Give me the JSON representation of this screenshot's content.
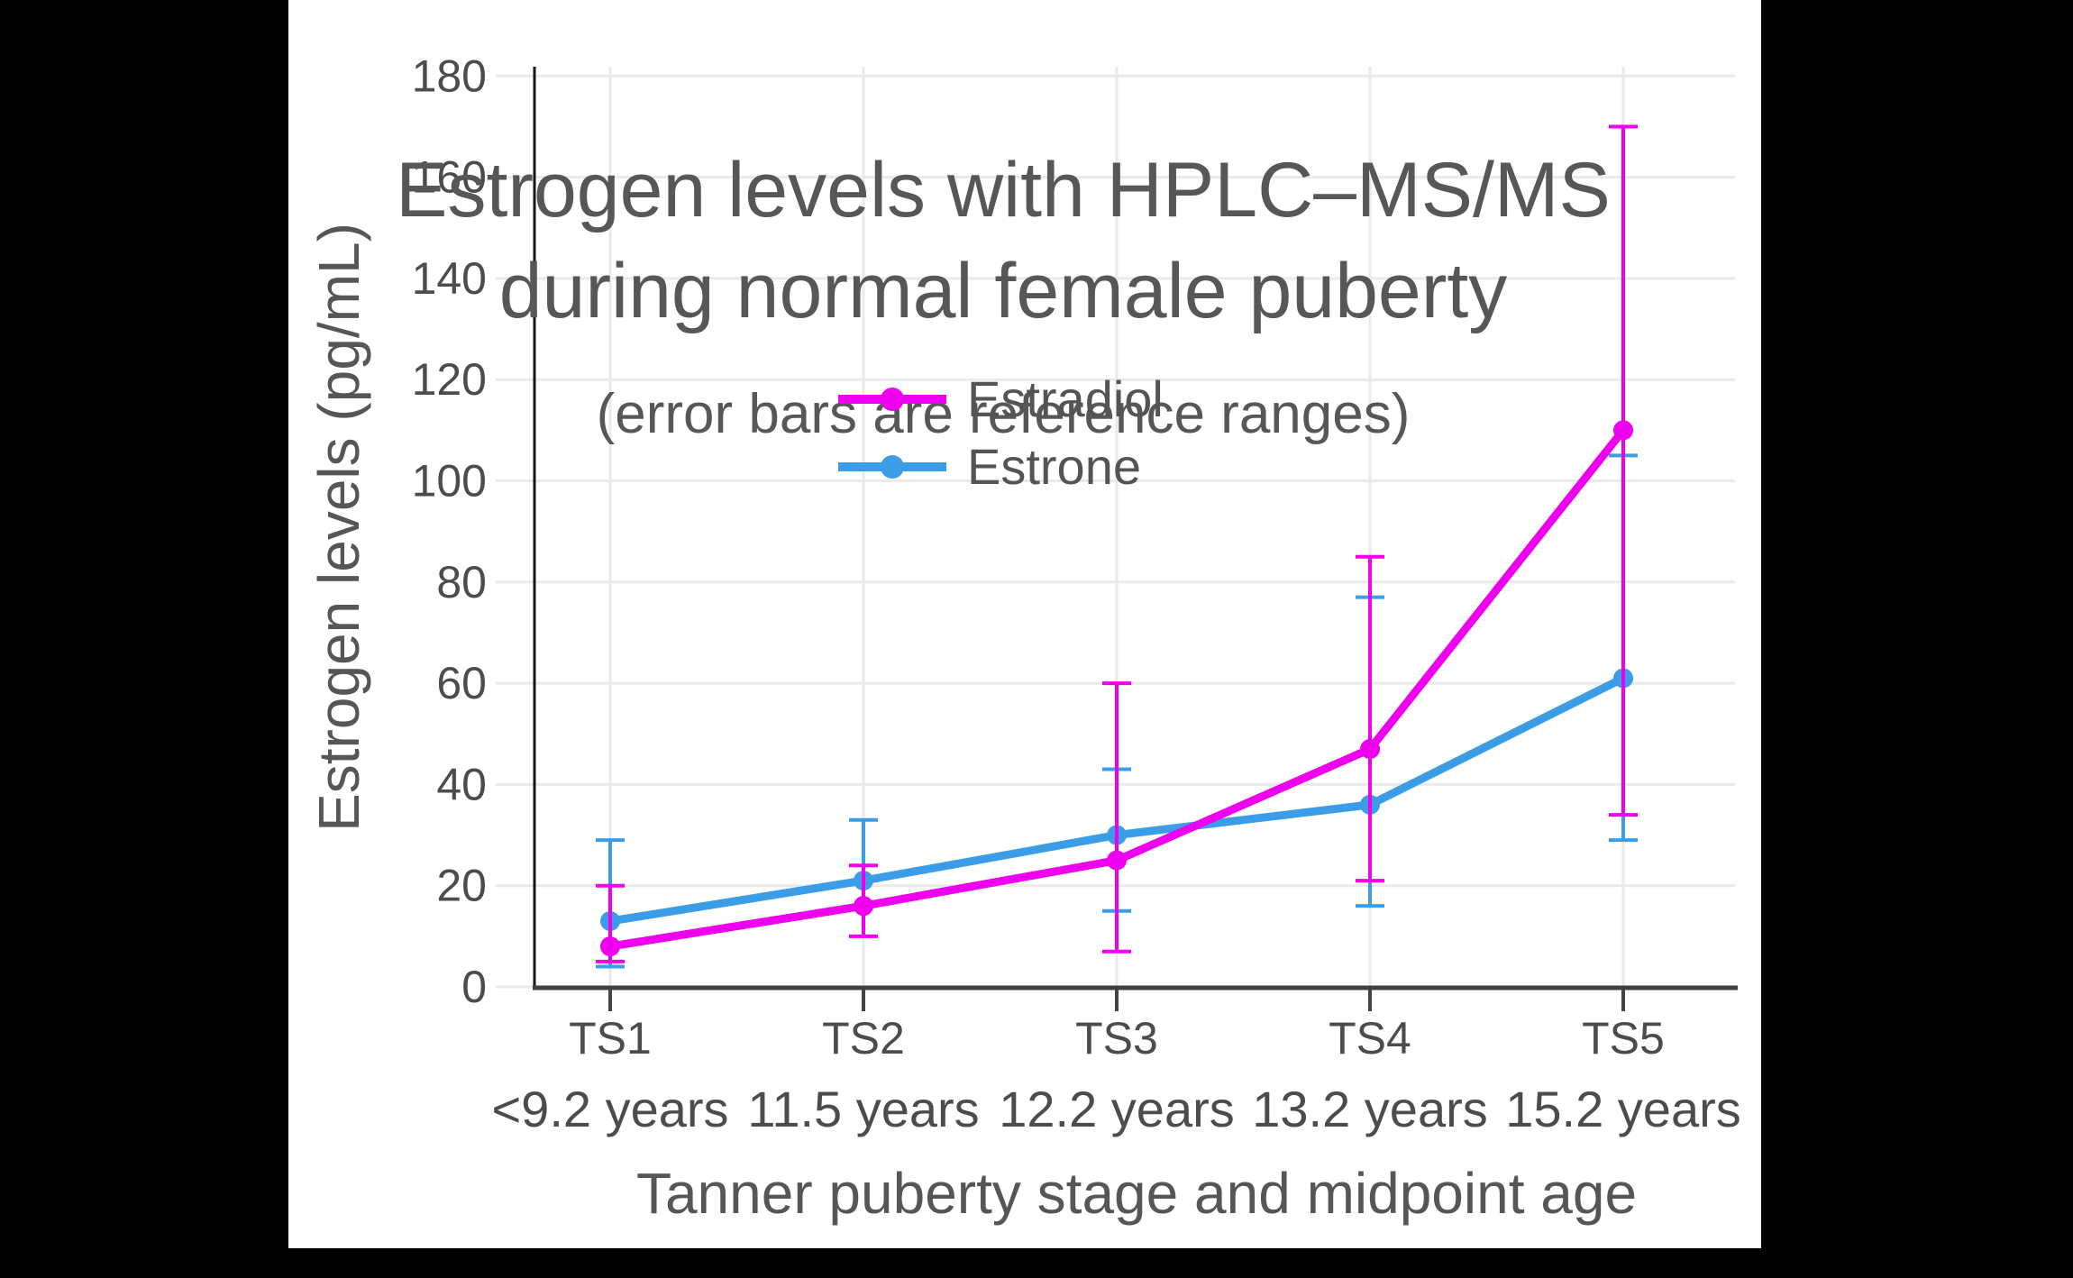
{
  "page": {
    "background_color": "#000000",
    "panel_color": "#ffffff"
  },
  "header": {
    "title_line1": "Estrogen levels with HPLC–MS/MS",
    "title_line2": "during normal female puberty",
    "subtitle": "(error bars are reference ranges)"
  },
  "legend": {
    "items": [
      {
        "label": "Estradiol",
        "color": "#EE00EE"
      },
      {
        "label": "Estrone",
        "color": "#3B9DE8"
      }
    ]
  },
  "chart_data": {
    "type": "line",
    "title": "Estrogen levels with HPLC–MS/MS during normal female puberty",
    "subtitle": "(error bars are reference ranges)",
    "xlabel": "Tanner puberty stage and midpoint age",
    "ylabel": "Estrogen levels (pg/mL)",
    "categories": [
      {
        "stage": "TS1",
        "age": "<9.2 years"
      },
      {
        "stage": "TS2",
        "age": "11.5 years"
      },
      {
        "stage": "TS3",
        "age": "12.2 years"
      },
      {
        "stage": "TS4",
        "age": "13.2 years"
      },
      {
        "stage": "TS5",
        "age": "15.2 years"
      }
    ],
    "yticks": [
      0,
      20,
      40,
      60,
      80,
      100,
      120,
      140,
      160,
      180
    ],
    "ylim": [
      0,
      182
    ],
    "grid": true,
    "legend_position": "inside upper-left",
    "error_bar_meaning": "reference ranges",
    "series": [
      {
        "name": "Estrone",
        "color": "#3B9DE8",
        "values": [
          13,
          21,
          30,
          36,
          61
        ],
        "range_low": [
          4,
          21,
          15,
          16,
          29
        ],
        "range_high": [
          29,
          33,
          43,
          77,
          105
        ]
      },
      {
        "name": "Estradiol",
        "color": "#EE00EE",
        "values": [
          8,
          16,
          25,
          47,
          110
        ],
        "range_low": [
          5,
          10,
          7,
          21,
          34
        ],
        "range_high": [
          20,
          24,
          60,
          85,
          170
        ]
      }
    ]
  }
}
